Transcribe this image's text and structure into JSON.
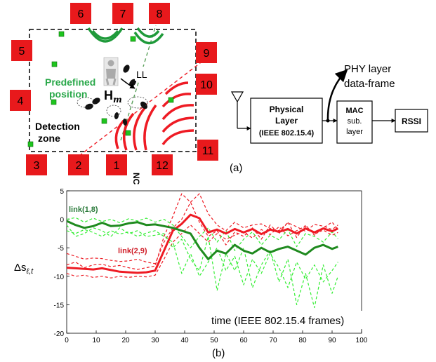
{
  "colors": {
    "node_red": "#e8191c",
    "sensor_green": "#1ec51e",
    "label_green": "#2aa84a",
    "red_line": "#ee1b24",
    "dark_green_line": "#1f8a1f",
    "light_green_line": "#33ee33"
  },
  "panel_a": {
    "caption": "(a)",
    "predefined_label": [
      "Predefined",
      "position"
    ],
    "hm_label": "H",
    "hm_sub": "m",
    "ll_label": "LL",
    "nc_label": "NC",
    "detection_label": [
      "Detection",
      "zone"
    ],
    "node_labels": [
      "1",
      "2",
      "3",
      "4",
      "5",
      "6",
      "7",
      "8",
      "9",
      "10",
      "11",
      "12"
    ],
    "physical_layer": [
      "Physical",
      "Layer",
      "(IEEE 802.15.4)"
    ],
    "mac_sublayer": [
      "MAC",
      "sub.",
      "layer"
    ],
    "rssi": "RSSI",
    "phy_frame": [
      "PHY layer",
      "data-frame"
    ]
  },
  "panel_b": {
    "caption": "(b)"
  },
  "chart_data": {
    "type": "line",
    "xlabel": "time (IEEE 802.15.4 frames)",
    "ylabel": "Δs",
    "ylabel_sub": "ℓ,t",
    "xlim": [
      0,
      100
    ],
    "ylim": [
      -20,
      5
    ],
    "xticks": [
      0,
      10,
      20,
      30,
      40,
      50,
      60,
      70,
      80,
      90,
      100
    ],
    "yticks": [
      5,
      0,
      -5,
      -10,
      -15,
      -20
    ],
    "x": [
      0,
      3,
      6,
      9,
      12,
      15,
      18,
      21,
      24,
      27,
      30,
      33,
      36,
      39,
      42,
      45,
      48,
      51,
      54,
      57,
      60,
      63,
      66,
      69,
      72,
      75,
      78,
      81,
      84,
      87,
      90,
      92
    ],
    "series": [
      {
        "name": "link(2,9)",
        "color": "#ee1b24",
        "style": "solid",
        "values": [
          -8.5,
          -8.6,
          -8.7,
          -8.8,
          -8.6,
          -8.9,
          -9.2,
          -9.3,
          -9.4,
          -9.3,
          -9.0,
          -5.5,
          -2.0,
          -0.8,
          0.8,
          0.2,
          -2.3,
          -1.8,
          -2.5,
          -1.7,
          -2.3,
          -1.7,
          -2.6,
          -1.8,
          -2.2,
          -1.7,
          -2.5,
          -1.6,
          -2.3,
          -1.6,
          -2.1,
          -1.6
        ]
      },
      {
        "name": "link(1,8)",
        "color": "#1f8a1f",
        "style": "solid",
        "values": [
          -0.3,
          -1.0,
          -1.5,
          -1.2,
          -0.6,
          -1.2,
          -1.1,
          -0.7,
          -0.5,
          -1.0,
          -0.9,
          -1.2,
          -1.5,
          -2.0,
          -2.5,
          -5.0,
          -7.0,
          -5.5,
          -6.0,
          -4.5,
          -5.5,
          -6.0,
          -5.0,
          -5.8,
          -5.2,
          -4.8,
          -5.5,
          -6.2,
          -5.0,
          -4.5,
          -5.2,
          -4.8
        ]
      },
      {
        "name": "",
        "color": "#ee1b24",
        "style": "dashed",
        "values": [
          -8.0,
          -7.5,
          -8.5,
          -8.0,
          -7.9,
          -8.3,
          -8.1,
          -8.5,
          -8.8,
          -8.5,
          -8.2,
          -3.0,
          0.5,
          4.5,
          3.0,
          -0.5,
          -3.0,
          -2.0,
          -4.5,
          -2.2,
          -3.0,
          -1.5,
          -3.5,
          -1.0,
          -2.5,
          -0.5,
          -3.2,
          -1.0,
          -2.8,
          -1.5,
          -0.5,
          -1.8
        ]
      },
      {
        "name": "",
        "color": "#ee1b24",
        "style": "dashed",
        "values": [
          -9.5,
          -10.0,
          -9.8,
          -10.2,
          -10.0,
          -10.3,
          -10.0,
          -10.2,
          -10.0,
          -10.1,
          -9.8,
          -7.0,
          -4.0,
          -2.5,
          -1.0,
          -2.5,
          -4.0,
          -2.5,
          -3.5,
          -2.8,
          -2.2,
          -3.3,
          -1.8,
          -2.7,
          -1.3,
          -2.9,
          -2.0,
          -1.2,
          -2.6,
          -1.9,
          -2.8,
          -2.3
        ]
      },
      {
        "name": "",
        "color": "#ee1b24",
        "style": "dashed",
        "values": [
          -6.0,
          -6.5,
          -7.0,
          -6.8,
          -6.9,
          -7.2,
          -7.4,
          -7.3,
          -7.0,
          -7.5,
          -7.8,
          -4.0,
          -1.5,
          0.0,
          3.0,
          4.5,
          1.0,
          -1.0,
          -2.0,
          -0.5,
          -1.5,
          -1.0,
          -0.8,
          -1.6,
          -2.0,
          -0.6,
          -1.3,
          -2.1,
          -0.9,
          -1.2,
          -1.8,
          -1.0
        ]
      },
      {
        "name": "",
        "color": "#33ee33",
        "style": "dashed",
        "values": [
          -1.0,
          -3.0,
          -2.5,
          -1.5,
          -2.0,
          -3.0,
          -1.5,
          -2.5,
          -2.0,
          -3.0,
          -2.8,
          -2.5,
          -5.0,
          -3.5,
          -7.0,
          -9.0,
          -3.0,
          -12.5,
          -6.0,
          -9.0,
          -5.0,
          -12.0,
          -8.0,
          -5.5,
          -11.0,
          -7.0,
          -15.0,
          -9.5,
          -15.5,
          -8.0,
          -13.0,
          -10.0
        ]
      },
      {
        "name": "",
        "color": "#33ee33",
        "style": "dashed",
        "values": [
          0.0,
          0.3,
          -0.5,
          0.2,
          -0.4,
          0.0,
          -0.6,
          0.1,
          -0.3,
          0.2,
          -0.5,
          0.0,
          -1.0,
          -3.0,
          -5.0,
          -3.0,
          -1.5,
          -4.0,
          -2.0,
          -5.5,
          -3.5,
          -2.2,
          -4.5,
          -2.8,
          -3.6,
          -1.8,
          -4.8,
          -2.5,
          -3.0,
          -4.0,
          -2.2,
          -3.4
        ]
      },
      {
        "name": "",
        "color": "#33ee33",
        "style": "dashed",
        "values": [
          -2.0,
          -2.5,
          -1.8,
          -2.3,
          -3.0,
          -2.0,
          -2.6,
          -2.2,
          -3.0,
          -2.4,
          -2.0,
          -3.0,
          -4.0,
          -9.5,
          -6.0,
          -10.0,
          -7.5,
          -5.0,
          -9.0,
          -6.5,
          -11.5,
          -7.0,
          -9.5,
          -6.0,
          -8.5,
          -12.0,
          -7.5,
          -10.5,
          -8.0,
          -11.0,
          -9.0,
          -7.5
        ]
      }
    ]
  }
}
